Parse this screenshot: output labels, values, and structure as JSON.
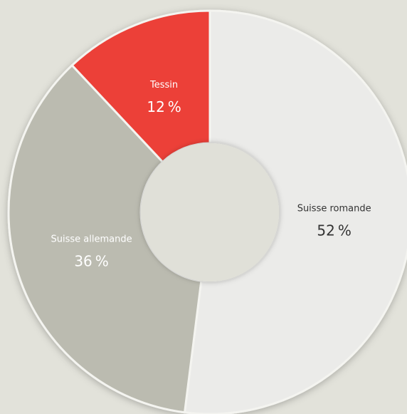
{
  "chart_data": {
    "type": "donut",
    "categories": [
      "Suisse romande",
      "Suisse allemande",
      "Tessin"
    ],
    "values": [
      52,
      36,
      12
    ],
    "value_labels": [
      "52 %",
      "36 %",
      "12 %"
    ],
    "colors": [
      "#ebebe9",
      "#bbbbb0",
      "#ec3f38"
    ]
  }
}
